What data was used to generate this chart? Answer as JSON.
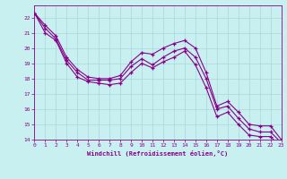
{
  "xlabel": "Windchill (Refroidissement éolien,°C)",
  "x": [
    0,
    1,
    2,
    3,
    4,
    5,
    6,
    7,
    8,
    9,
    10,
    11,
    12,
    13,
    14,
    15,
    16,
    17,
    18,
    19,
    20,
    21,
    22,
    23
  ],
  "line1": [
    22.3,
    21.5,
    20.8,
    19.4,
    18.6,
    18.1,
    18.0,
    18.0,
    18.2,
    19.1,
    19.7,
    19.6,
    20.0,
    20.3,
    20.5,
    20.0,
    18.4,
    16.2,
    16.5,
    15.8,
    15.0,
    14.9,
    14.9,
    14.0
  ],
  "line2": [
    22.3,
    21.3,
    20.6,
    19.2,
    18.4,
    17.9,
    17.9,
    17.9,
    18.0,
    18.8,
    19.3,
    18.9,
    19.4,
    19.8,
    20.0,
    19.4,
    18.0,
    16.0,
    16.2,
    15.4,
    14.7,
    14.5,
    14.5,
    13.8
  ],
  "line3": [
    22.3,
    21.0,
    20.5,
    19.0,
    18.1,
    17.8,
    17.7,
    17.6,
    17.7,
    18.4,
    19.0,
    18.7,
    19.1,
    19.4,
    19.8,
    18.9,
    17.4,
    15.5,
    15.8,
    15.0,
    14.3,
    14.2,
    14.2,
    13.5
  ],
  "line_color": "#880088",
  "bg_color": "#c8f0f0",
  "grid_color": "#b0e0e0",
  "ylim_min": 14,
  "ylim_max": 22.8,
  "xlim_min": 0,
  "xlim_max": 23,
  "yticks": [
    14,
    15,
    16,
    17,
    18,
    19,
    20,
    21,
    22
  ],
  "xticks": [
    0,
    1,
    2,
    3,
    4,
    5,
    6,
    7,
    8,
    9,
    10,
    11,
    12,
    13,
    14,
    15,
    16,
    17,
    18,
    19,
    20,
    21,
    22,
    23
  ]
}
